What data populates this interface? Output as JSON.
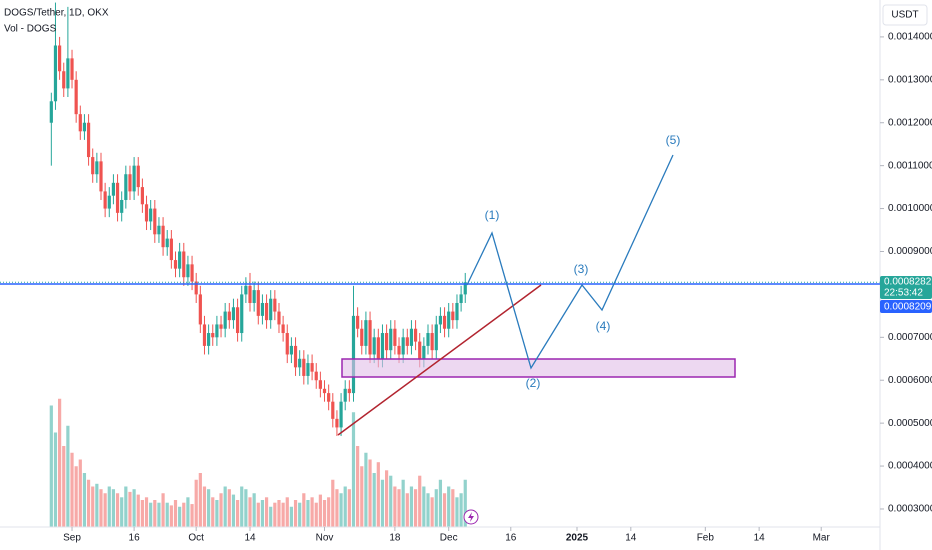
{
  "header": {
    "symbol": "DOGS/Tether, 1D, OKX",
    "volume_label": "Vol - DOGS",
    "currency": "USDT"
  },
  "chart_data": {
    "type": "candlestick",
    "x": [
      -5,
      -4,
      -3,
      -2,
      -1,
      0,
      1,
      2,
      3,
      4,
      5,
      6,
      7,
      8,
      9,
      10,
      11,
      12,
      13,
      14,
      15,
      16,
      17,
      18,
      19,
      20,
      21,
      22,
      23,
      24,
      25,
      26,
      27,
      28,
      29,
      30,
      31,
      32,
      33,
      34,
      35,
      36,
      37,
      38,
      39,
      40,
      41,
      42,
      43,
      44,
      45,
      46,
      47,
      48,
      49,
      50,
      51,
      52,
      53,
      54,
      55,
      56,
      57,
      58,
      59,
      60,
      61,
      62,
      63,
      64,
      65,
      66,
      67,
      68,
      69,
      70,
      71,
      72,
      73,
      74,
      75,
      76,
      77,
      78,
      79,
      80,
      81,
      82,
      83,
      84,
      85,
      86,
      87,
      88,
      89,
      90,
      91,
      92,
      93,
      94,
      95
    ],
    "open": [
      0.0012,
      0.00125,
      0.00138,
      0.00132,
      0.00128,
      0.00135,
      0.0013,
      0.00122,
      0.00118,
      0.0012,
      0.00112,
      0.00108,
      0.00111,
      0.00104,
      0.001,
      0.00103,
      0.00106,
      0.00099,
      0.00102,
      0.00108,
      0.00104,
      0.0011,
      0.00105,
      0.00101,
      0.00097,
      0.001,
      0.00094,
      0.00096,
      0.00091,
      0.00093,
      0.00088,
      0.00086,
      0.0009,
      0.00084,
      0.00087,
      0.00083,
      0.0008,
      0.00073,
      0.00068,
      0.00071,
      0.0007,
      0.00073,
      0.00072,
      0.00076,
      0.00074,
      0.00077,
      0.00071,
      0.0008,
      0.00082,
      0.00078,
      0.00081,
      0.00075,
      0.00078,
      0.00074,
      0.00079,
      0.00076,
      0.00073,
      0.00071,
      0.00066,
      0.00068,
      0.00063,
      0.00065,
      0.00061,
      0.00064,
      0.00062,
      0.0006,
      0.00058,
      0.00057,
      0.00055,
      0.00051,
      0.00049,
      0.00055,
      0.00058,
      0.00057,
      0.00075,
      0.00072,
      0.00068,
      0.00074,
      0.00066,
      0.0007,
      0.00065,
      0.00071,
      0.00067,
      0.00072,
      0.00068,
      0.00066,
      0.0007,
      0.00068,
      0.00072,
      0.00069,
      0.00065,
      0.00068,
      0.00071,
      0.00067,
      0.00073,
      0.00075,
      0.00072,
      0.00076,
      0.00074,
      0.00078,
      0.0008
    ],
    "high": [
      0.00127,
      0.00148,
      0.0014,
      0.00134,
      0.00147,
      0.00137,
      0.00132,
      0.00124,
      0.00122,
      0.00122,
      0.00114,
      0.00113,
      0.00113,
      0.00106,
      0.00105,
      0.00108,
      0.00108,
      0.00104,
      0.0011,
      0.0011,
      0.00112,
      0.00112,
      0.00107,
      0.00103,
      0.00102,
      0.00102,
      0.00098,
      0.00098,
      0.00095,
      0.00095,
      0.0009,
      0.00092,
      0.00092,
      0.00089,
      0.00089,
      0.00085,
      0.00082,
      0.00075,
      0.00073,
      0.00073,
      0.00075,
      0.00075,
      0.00078,
      0.00078,
      0.00079,
      0.00079,
      0.00082,
      0.00084,
      0.00085,
      0.00083,
      0.00083,
      0.0008,
      0.0008,
      0.00081,
      0.00081,
      0.00078,
      0.00075,
      0.00073,
      0.0007,
      0.0007,
      0.00067,
      0.00067,
      0.00066,
      0.00066,
      0.00064,
      0.00062,
      0.0006,
      0.00059,
      0.00057,
      0.00053,
      0.00057,
      0.0006,
      0.0006,
      0.00082,
      0.00077,
      0.00074,
      0.00076,
      0.00076,
      0.00072,
      0.00072,
      0.00073,
      0.00073,
      0.00074,
      0.00074,
      0.0007,
      0.00072,
      0.00072,
      0.00074,
      0.00074,
      0.00071,
      0.0007,
      0.00073,
      0.00073,
      0.00075,
      0.00077,
      0.00077,
      0.00078,
      0.00078,
      0.0008,
      0.00082,
      0.00085
    ],
    "low": [
      0.0011,
      0.00123,
      0.0013,
      0.00126,
      0.00126,
      0.00128,
      0.0012,
      0.00116,
      0.00116,
      0.0011,
      0.00106,
      0.00106,
      0.00102,
      0.00098,
      0.00098,
      0.00101,
      0.00097,
      0.00097,
      0.001,
      0.00102,
      0.00102,
      0.00103,
      0.00099,
      0.00095,
      0.00095,
      0.00092,
      0.00092,
      0.00089,
      0.00089,
      0.00086,
      0.00084,
      0.00084,
      0.00082,
      0.00082,
      0.00081,
      0.00078,
      0.00071,
      0.00066,
      0.00066,
      0.00068,
      0.00068,
      0.0007,
      0.0007,
      0.00072,
      0.00072,
      0.00069,
      0.00069,
      0.00078,
      0.00076,
      0.00076,
      0.00073,
      0.00073,
      0.00072,
      0.00072,
      0.00074,
      0.00071,
      0.00069,
      0.00064,
      0.00064,
      0.00061,
      0.00061,
      0.00059,
      0.00059,
      0.0006,
      0.00058,
      0.00056,
      0.00055,
      0.00053,
      0.00049,
      0.00047,
      0.00047,
      0.00053,
      0.00055,
      0.00055,
      0.0007,
      0.00066,
      0.00066,
      0.00064,
      0.00064,
      0.00063,
      0.00063,
      0.00065,
      0.00065,
      0.00066,
      0.00064,
      0.00064,
      0.00066,
      0.00066,
      0.00067,
      0.00063,
      0.00063,
      0.00066,
      0.00065,
      0.00065,
      0.00071,
      0.0007,
      0.0007,
      0.00072,
      0.00072,
      0.00076,
      0.00078
    ],
    "close": [
      0.00125,
      0.00138,
      0.00132,
      0.00128,
      0.00135,
      0.0013,
      0.00122,
      0.00118,
      0.0012,
      0.00112,
      0.00108,
      0.00111,
      0.00104,
      0.001,
      0.00103,
      0.00106,
      0.00099,
      0.00102,
      0.00108,
      0.00104,
      0.0011,
      0.00105,
      0.00101,
      0.00097,
      0.001,
      0.00094,
      0.00096,
      0.00091,
      0.00093,
      0.00088,
      0.00086,
      0.0009,
      0.00084,
      0.00087,
      0.00083,
      0.0008,
      0.00073,
      0.00068,
      0.00071,
      0.0007,
      0.00073,
      0.00072,
      0.00076,
      0.00074,
      0.00077,
      0.00071,
      0.0008,
      0.00082,
      0.00078,
      0.00081,
      0.00075,
      0.00078,
      0.00074,
      0.00079,
      0.00076,
      0.00073,
      0.00071,
      0.00066,
      0.00068,
      0.00063,
      0.00065,
      0.00061,
      0.00064,
      0.00062,
      0.0006,
      0.00058,
      0.00057,
      0.00055,
      0.00051,
      0.00049,
      0.00055,
      0.00058,
      0.00057,
      0.00075,
      0.00072,
      0.00068,
      0.00074,
      0.00066,
      0.0007,
      0.00065,
      0.00071,
      0.00067,
      0.00072,
      0.00068,
      0.00066,
      0.0007,
      0.00068,
      0.00072,
      0.00069,
      0.00065,
      0.00068,
      0.00071,
      0.00067,
      0.00073,
      0.00075,
      0.00072,
      0.00076,
      0.00074,
      0.00078,
      0.0008,
      0.0008282
    ],
    "volume": [
      90,
      70,
      95,
      60,
      75,
      55,
      45,
      50,
      40,
      35,
      30,
      32,
      28,
      25,
      30,
      28,
      25,
      22,
      30,
      26,
      28,
      24,
      20,
      22,
      18,
      20,
      18,
      25,
      18,
      16,
      20,
      15,
      18,
      22,
      17,
      35,
      40,
      30,
      28,
      22,
      20,
      25,
      30,
      28,
      24,
      20,
      30,
      28,
      22,
      25,
      18,
      20,
      22,
      15,
      18,
      20,
      18,
      22,
      15,
      20,
      18,
      25,
      20,
      22,
      18,
      24,
      20,
      22,
      35,
      28,
      25,
      30,
      28,
      85,
      60,
      45,
      55,
      50,
      40,
      48,
      35,
      42,
      38,
      30,
      28,
      35,
      25,
      30,
      28,
      38,
      30,
      25,
      22,
      28,
      35,
      25,
      30,
      28,
      22,
      25,
      35
    ],
    "volume_lim": [
      0,
      100
    ],
    "up_color": "#26a69a",
    "down_color": "#ef5350",
    "xlim": [
      -17.4,
      195.2
    ],
    "xticks": [
      {
        "value": 0,
        "label": "Sep"
      },
      {
        "value": 15,
        "label": "16"
      },
      {
        "value": 30,
        "label": "Oct"
      },
      {
        "value": 43,
        "label": "14"
      },
      {
        "value": 61,
        "label": "Nov"
      },
      {
        "value": 78,
        "label": "18"
      },
      {
        "value": 91,
        "label": "Dec"
      },
      {
        "value": 106,
        "label": "16"
      },
      {
        "value": 122,
        "label": "2025"
      },
      {
        "value": 135,
        "label": "14"
      },
      {
        "value": 153,
        "label": "Feb"
      },
      {
        "value": 166,
        "label": "14"
      },
      {
        "value": 181,
        "label": "Mar"
      }
    ],
    "ylim": [
      0.000258,
      0.001486
    ],
    "yticks": [
      {
        "value": 0.0014,
        "label": "0.0014000"
      },
      {
        "value": 0.0013,
        "label": "0.0013000"
      },
      {
        "value": 0.0012,
        "label": "0.0012000"
      },
      {
        "value": 0.0011,
        "label": "0.0011000"
      },
      {
        "value": 0.001,
        "label": "0.0010000"
      },
      {
        "value": 0.0009,
        "label": "0.0009000"
      },
      {
        "value": 0.0007,
        "label": "0.0007000"
      },
      {
        "value": 0.0006,
        "label": "0.0006000"
      },
      {
        "value": 0.0005,
        "label": "0.0005000"
      },
      {
        "value": 0.0004,
        "label": "0.0004000"
      },
      {
        "value": 0.0003,
        "label": "0.0003000"
      }
    ]
  },
  "price_labels": {
    "last": 0.0008282,
    "countdown": "22:53:42",
    "line": 0.0008209
  },
  "annotations": {
    "labels": [
      "(1)",
      "(2)",
      "(3)",
      "(4)",
      "(5)"
    ]
  }
}
